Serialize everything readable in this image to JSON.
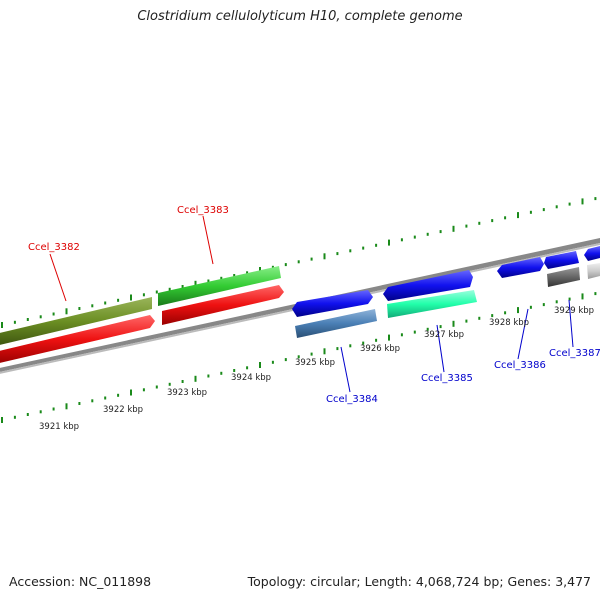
{
  "title": "Clostridium cellulolyticum H10, complete genome",
  "footer": {
    "accession": "Accession: NC_011898",
    "stats": "Topology: circular; Length: 4,068,724 bp; Genes: 3,477"
  },
  "kbp_ticks": [
    "3921 kbp",
    "3922 kbp",
    "3923 kbp",
    "3924 kbp",
    "3925 kbp",
    "3926 kbp",
    "3927 kbp",
    "3928 kbp",
    "3929 kbp"
  ],
  "gene_labels": [
    {
      "text": "Ccel_3382",
      "color": "#dd0000"
    },
    {
      "text": "Ccel_3383",
      "color": "#dd0000"
    },
    {
      "text": "Ccel_3384",
      "color": "#0000cc"
    },
    {
      "text": "Ccel_3385",
      "color": "#0000cc"
    },
    {
      "text": "Ccel_3386",
      "color": "#0000cc"
    },
    {
      "text": "Ccel_3387",
      "color": "#0000cc"
    }
  ],
  "colors": {
    "red": "#ee1111",
    "olive": "#6b8e23",
    "green": "#33cc33",
    "blue": "#1111ee",
    "steelblue": "#4a7fb5",
    "aquamarine": "#22ffaa",
    "gray": "#666666",
    "lightgray": "#cccccc",
    "backbone": "#888888",
    "tick": "#1a8a1a"
  }
}
